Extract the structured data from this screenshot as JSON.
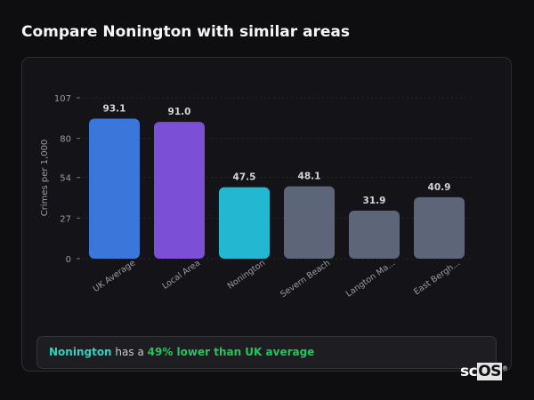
{
  "header": {
    "title": "Compare Nonington with similar areas"
  },
  "chart_data": {
    "type": "bar",
    "title": "",
    "xlabel": "",
    "ylabel": "Crimes per 1,000",
    "ylim": [
      0,
      107
    ],
    "yticks": [
      0,
      27,
      54,
      80,
      107
    ],
    "grid": true,
    "categories": [
      "UK Average",
      "Local Area",
      "Nonington",
      "Severn Beach",
      "Langton Ma...",
      "East Bergh..."
    ],
    "values": [
      93.1,
      91.0,
      47.5,
      48.1,
      31.9,
      40.9
    ],
    "value_labels": [
      "93.1",
      "91.0",
      "47.5",
      "48.1",
      "31.9",
      "40.9"
    ],
    "colors": [
      "#3b76db",
      "#7b4fd6",
      "#22b8d1",
      "#5c6678",
      "#5c6678",
      "#5c6678"
    ]
  },
  "summary": {
    "place": "Nonington",
    "middle": " has a ",
    "highlight": "49% lower than UK average"
  },
  "logo": {
    "text_a": "sc",
    "text_b": "OS",
    "mark": "®"
  }
}
